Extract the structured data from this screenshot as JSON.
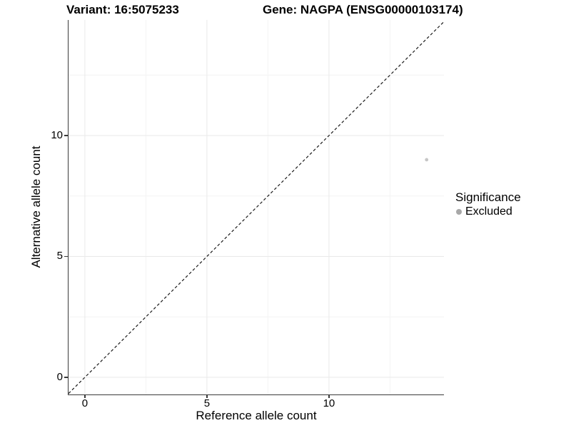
{
  "header": {
    "variant_title": "Variant: 16:5075233",
    "gene_title": "Gene: NAGPA (ENSG00000103174)"
  },
  "axes": {
    "x_label": "Reference allele count",
    "y_label": "Alternative allele count"
  },
  "legend": {
    "title": "Significance",
    "items": [
      {
        "label": "Excluded",
        "color": "#a8a8a8"
      }
    ]
  },
  "colors": {
    "grid_major": "#e9e9e9",
    "grid_minor": "#f4f4f4",
    "axis_line": "#3a3a3a",
    "reference_line": "#1a1a1a",
    "point": "#c6c6c6",
    "text": "#000000",
    "background": "#ffffff"
  },
  "chart_data": {
    "type": "scatter",
    "title": "Variant: 16:5075233 | Gene: NAGPA (ENSG00000103174)",
    "xlabel": "Reference allele count",
    "ylabel": "Alternative allele count",
    "xlim": [
      -0.67,
      14.71
    ],
    "ylim": [
      -0.71,
      14.78
    ],
    "x_ticks": [
      0,
      5,
      10
    ],
    "x_tick_labels": [
      "0",
      "5",
      "10"
    ],
    "y_ticks": [
      0,
      5,
      10
    ],
    "y_tick_labels": [
      "0",
      "5",
      "10"
    ],
    "x_grid_minor": [
      2.5,
      7.5,
      12.5
    ],
    "y_grid_minor": [
      2.5,
      7.5,
      12.5
    ],
    "grid": true,
    "reference_line": {
      "type": "identity",
      "equation": "y = x",
      "style": "dashed",
      "color": "#1a1a1a"
    },
    "series": [
      {
        "name": "Excluded",
        "significance": "Excluded",
        "color": "#c6c6c6",
        "points": [
          {
            "x": 14,
            "y": 9
          }
        ]
      }
    ],
    "legend_title": "Significance",
    "legend_position": "right"
  }
}
